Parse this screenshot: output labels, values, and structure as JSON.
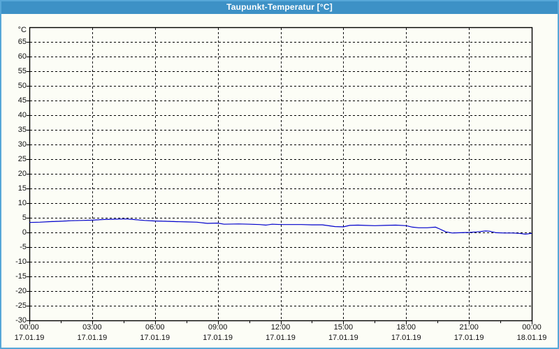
{
  "window": {
    "title": "Taupunkt-Temperatur [°C]",
    "titlebar_color": "#3d91c6",
    "border_color": "#57a7d8",
    "background_color": "#fcfdf6"
  },
  "chart_data": {
    "type": "line",
    "title": "Taupunkt-Temperatur [°C]",
    "unit_label": "°C",
    "ylim": [
      -30,
      70
    ],
    "y_ticks": [
      65,
      60,
      55,
      50,
      45,
      40,
      35,
      30,
      25,
      20,
      15,
      10,
      5,
      0,
      -5,
      -10,
      -15,
      -20,
      -25,
      -30
    ],
    "x_axis": {
      "range_hours": [
        0,
        24
      ],
      "major_tick_interval_hours": 3,
      "minor_tick_interval_hours": 1.5,
      "tick_labels": [
        {
          "hour": 0,
          "time": "00:00",
          "date": "17.01.19"
        },
        {
          "hour": 3,
          "time": "03:00",
          "date": "17.01.19"
        },
        {
          "hour": 6,
          "time": "06:00",
          "date": "17.01.19"
        },
        {
          "hour": 9,
          "time": "09:00",
          "date": "17.01.19"
        },
        {
          "hour": 12,
          "time": "12:00",
          "date": "17.01.19"
        },
        {
          "hour": 15,
          "time": "15:00",
          "date": "17.01.19"
        },
        {
          "hour": 18,
          "time": "18:00",
          "date": "17.01.19"
        },
        {
          "hour": 21,
          "time": "21:00",
          "date": "17.01.19"
        },
        {
          "hour": 24,
          "time": "00:00",
          "date": "18.01.19"
        }
      ]
    },
    "grid": "dashed-black",
    "legend": "none",
    "series": [
      {
        "name": "Taupunkt-Temperatur",
        "color": "#0000cc",
        "points_hour_value": [
          [
            0,
            3.4
          ],
          [
            0.5,
            3.5
          ],
          [
            1,
            3.7
          ],
          [
            1.5,
            3.8
          ],
          [
            2,
            4.0
          ],
          [
            2.5,
            4.1
          ],
          [
            3,
            4.2
          ],
          [
            3.5,
            4.4
          ],
          [
            4,
            4.5
          ],
          [
            4.6,
            4.6
          ],
          [
            5,
            4.4
          ],
          [
            5.5,
            4.1
          ],
          [
            6,
            3.9
          ],
          [
            6.5,
            3.8
          ],
          [
            7,
            3.7
          ],
          [
            7.5,
            3.6
          ],
          [
            8,
            3.5
          ],
          [
            8.5,
            3.1
          ],
          [
            9,
            3.2
          ],
          [
            9.3,
            2.8
          ],
          [
            10,
            2.9
          ],
          [
            10.5,
            2.8
          ],
          [
            11,
            2.7
          ],
          [
            11.3,
            2.5
          ],
          [
            11.6,
            2.8
          ],
          [
            12,
            2.7
          ],
          [
            12.5,
            2.7
          ],
          [
            13,
            2.7
          ],
          [
            13.5,
            2.6
          ],
          [
            14,
            2.6
          ],
          [
            14.6,
            2.0
          ],
          [
            15,
            1.9
          ],
          [
            15.3,
            2.4
          ],
          [
            15.7,
            2.5
          ],
          [
            16,
            2.4
          ],
          [
            16.5,
            2.3
          ],
          [
            17,
            2.4
          ],
          [
            17.5,
            2.5
          ],
          [
            18,
            2.3
          ],
          [
            18.3,
            1.8
          ],
          [
            18.6,
            1.6
          ],
          [
            19,
            1.6
          ],
          [
            19.4,
            1.8
          ],
          [
            19.6,
            1.2
          ],
          [
            19.9,
            0.2
          ],
          [
            20.2,
            -0.2
          ],
          [
            20.6,
            -0.1
          ],
          [
            21,
            0.0
          ],
          [
            21.4,
            0.2
          ],
          [
            21.8,
            0.5
          ],
          [
            22.0,
            0.4
          ],
          [
            22.3,
            -0.1
          ],
          [
            22.7,
            -0.2
          ],
          [
            23.1,
            -0.2
          ],
          [
            23.4,
            -0.3
          ],
          [
            23.7,
            -0.6
          ],
          [
            23.9,
            -0.4
          ],
          [
            24,
            -0.3
          ]
        ]
      }
    ]
  }
}
